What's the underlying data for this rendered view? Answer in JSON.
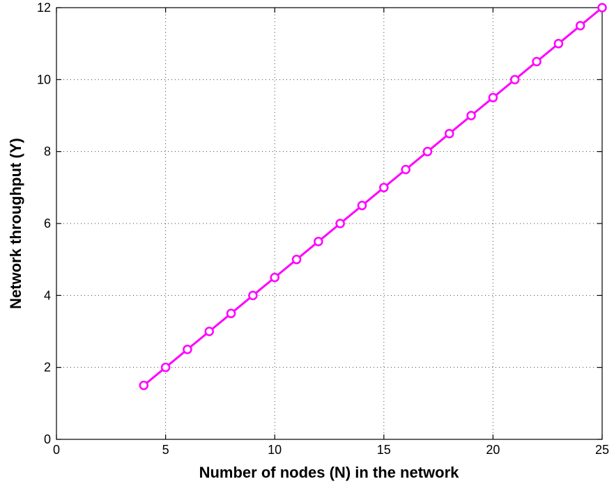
{
  "chart_data": {
    "type": "line",
    "title": "",
    "xlabel": "Number of nodes (N) in the network",
    "ylabel": "Network throughput (Y)",
    "xlim": [
      0,
      25
    ],
    "ylim": [
      0,
      12
    ],
    "x_ticks": [
      0,
      5,
      10,
      15,
      20,
      25
    ],
    "y_ticks": [
      0,
      2,
      4,
      6,
      8,
      10,
      12
    ],
    "grid": true,
    "legend": "none",
    "series": [
      {
        "color": "#ff00ff",
        "marker": "circle",
        "x": [
          4,
          5,
          6,
          7,
          8,
          9,
          10,
          11,
          12,
          13,
          14,
          15,
          16,
          17,
          18,
          19,
          20,
          21,
          22,
          23,
          24,
          25
        ],
        "y": [
          1.5,
          2,
          2.5,
          3,
          3.5,
          4,
          4.5,
          5,
          5.5,
          6,
          6.5,
          7,
          7.5,
          8,
          8.5,
          9,
          9.5,
          10,
          10.5,
          11,
          11.5,
          12
        ]
      }
    ]
  }
}
